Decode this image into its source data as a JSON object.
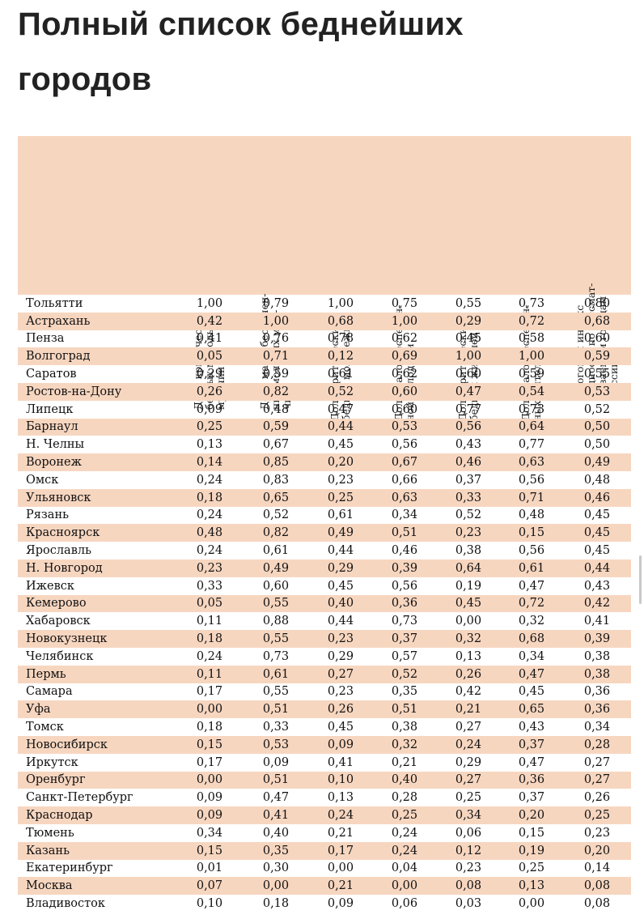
{
  "title": {
    "line1": "Полный список беднейших",
    "line2": "городов"
  },
  "columns": [
    "Доля критически\nбедных молодых\nмужчин",
    "Доля малообеспечен-\nных молодых муж-\nчин",
    "Доля критически\nбедной молодежи",
    "Доля малообеспечен-\nной молодежи",
    "Доля критически\nбедных жителей",
    "Доля малообеспечен-\nных жителей",
    "Итоговый индекс\nбедности по рассмат-\nриваемым городам\nРоссии"
  ],
  "rows": [
    {
      "city": "Тольятти",
      "values": [
        "1,00",
        "0,79",
        "1,00",
        "0,75",
        "0,55",
        "0,73",
        "0,80"
      ]
    },
    {
      "city": "Астрахань",
      "values": [
        "0,42",
        "1,00",
        "0,68",
        "1,00",
        "0,29",
        "0,72",
        "0,68"
      ]
    },
    {
      "city": "Пенза",
      "values": [
        "0,41",
        "0,76",
        "0,78",
        "0,62",
        "0,45",
        "0,58",
        "0,60"
      ]
    },
    {
      "city": "Волгоград",
      "values": [
        "0,05",
        "0,71",
        "0,12",
        "0,69",
        "1,00",
        "1,00",
        "0,59"
      ]
    },
    {
      "city": "Саратов",
      "values": [
        "0,29",
        "0,59",
        "0,61",
        "0,62",
        "0,60",
        "0,59",
        "0,55"
      ]
    },
    {
      "city": "Ростов-на-Дону",
      "values": [
        "0,26",
        "0,82",
        "0,52",
        "0,60",
        "0,47",
        "0,54",
        "0,53"
      ]
    },
    {
      "city": "Липецк",
      "values": [
        "0,09",
        "0,48",
        "0,47",
        "0,60",
        "0,77",
        "0,73",
        "0,52"
      ]
    },
    {
      "city": "Барнаул",
      "values": [
        "0,25",
        "0,59",
        "0,44",
        "0,53",
        "0,56",
        "0,64",
        "0,50"
      ]
    },
    {
      "city": "Н. Челны",
      "values": [
        "0,13",
        "0,67",
        "0,45",
        "0,56",
        "0,43",
        "0,77",
        "0,50"
      ]
    },
    {
      "city": "Воронеж",
      "values": [
        "0,14",
        "0,85",
        "0,20",
        "0,67",
        "0,46",
        "0,63",
        "0,49"
      ]
    },
    {
      "city": "Омск",
      "values": [
        "0,24",
        "0,83",
        "0,23",
        "0,66",
        "0,37",
        "0,56",
        "0,48"
      ]
    },
    {
      "city": "Ульяновск",
      "values": [
        "0,18",
        "0,65",
        "0,25",
        "0,63",
        "0,33",
        "0,71",
        "0,46"
      ]
    },
    {
      "city": "Рязань",
      "values": [
        "0,24",
        "0,52",
        "0,61",
        "0,34",
        "0,52",
        "0,48",
        "0,45"
      ]
    },
    {
      "city": "Красноярск",
      "values": [
        "0,48",
        "0,82",
        "0,49",
        "0,51",
        "0,23",
        "0,15",
        "0,45"
      ]
    },
    {
      "city": "Ярославль",
      "values": [
        "0,24",
        "0,61",
        "0,44",
        "0,46",
        "0,38",
        "0,56",
        "0,45"
      ]
    },
    {
      "city": "Н. Новгород",
      "values": [
        "0,23",
        "0,49",
        "0,29",
        "0,39",
        "0,64",
        "0,61",
        "0,44"
      ]
    },
    {
      "city": "Ижевск",
      "values": [
        "0,33",
        "0,60",
        "0,45",
        "0,56",
        "0,19",
        "0,47",
        "0,43"
      ]
    },
    {
      "city": "Кемерово",
      "values": [
        "0,05",
        "0,55",
        "0,40",
        "0,36",
        "0,45",
        "0,72",
        "0,42"
      ]
    },
    {
      "city": "Хабаровск",
      "values": [
        "0,11",
        "0,88",
        "0,44",
        "0,73",
        "0,00",
        "0,32",
        "0,41"
      ]
    },
    {
      "city": "Новокузнецк",
      "values": [
        "0,18",
        "0,55",
        "0,23",
        "0,37",
        "0,32",
        "0,68",
        "0,39"
      ]
    },
    {
      "city": "Челябинск",
      "values": [
        "0,24",
        "0,73",
        "0,29",
        "0,57",
        "0,13",
        "0,34",
        "0,38"
      ]
    },
    {
      "city": "Пермь",
      "values": [
        "0,11",
        "0,61",
        "0,27",
        "0,52",
        "0,26",
        "0,47",
        "0,38"
      ]
    },
    {
      "city": "Самара",
      "values": [
        "0,17",
        "0,55",
        "0,23",
        "0,35",
        "0,42",
        "0,45",
        "0,36"
      ]
    },
    {
      "city": "Уфа",
      "values": [
        "0,00",
        "0,51",
        "0,26",
        "0,51",
        "0,21",
        "0,65",
        "0,36"
      ]
    },
    {
      "city": "Томск",
      "values": [
        "0,18",
        "0,33",
        "0,45",
        "0,38",
        "0,27",
        "0,43",
        "0,34"
      ]
    },
    {
      "city": "Новосибирск",
      "values": [
        "0,15",
        "0,53",
        "0,09",
        "0,32",
        "0,24",
        "0,37",
        "0,28"
      ]
    },
    {
      "city": "Иркутск",
      "values": [
        "0,17",
        "0,09",
        "0,41",
        "0,21",
        "0,29",
        "0,47",
        "0,27"
      ]
    },
    {
      "city": "Оренбург",
      "values": [
        "0,00",
        "0,51",
        "0,10",
        "0,40",
        "0,27",
        "0,36",
        "0,27"
      ]
    },
    {
      "city": "Санкт-Петербург",
      "values": [
        "0,09",
        "0,47",
        "0,13",
        "0,28",
        "0,25",
        "0,37",
        "0,26"
      ]
    },
    {
      "city": "Краснодар",
      "values": [
        "0,09",
        "0,41",
        "0,24",
        "0,25",
        "0,34",
        "0,20",
        "0,25"
      ]
    },
    {
      "city": "Тюмень",
      "values": [
        "0,34",
        "0,40",
        "0,21",
        "0,24",
        "0,06",
        "0,15",
        "0,23"
      ]
    },
    {
      "city": "Казань",
      "values": [
        "0,15",
        "0,35",
        "0,17",
        "0,24",
        "0,12",
        "0,19",
        "0,20"
      ]
    },
    {
      "city": "Екатеринбург",
      "values": [
        "0,01",
        "0,30",
        "0,00",
        "0,04",
        "0,23",
        "0,25",
        "0,14"
      ]
    },
    {
      "city": "Москва",
      "values": [
        "0,07",
        "0,00",
        "0,21",
        "0,00",
        "0,08",
        "0,13",
        "0,08"
      ]
    },
    {
      "city": "Владивосток",
      "values": [
        "0,10",
        "0,18",
        "0,09",
        "0,06",
        "0,03",
        "0,00",
        "0,08"
      ]
    }
  ]
}
